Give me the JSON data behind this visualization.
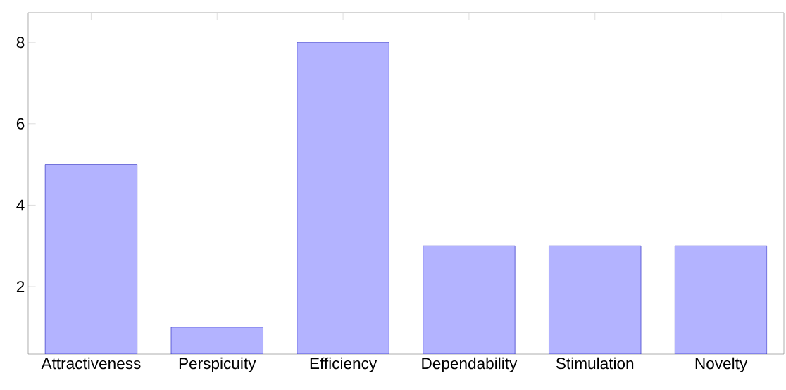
{
  "chart_data": {
    "type": "bar",
    "categories": [
      "Attractiveness",
      "Perspicuity",
      "Efficiency",
      "Dependability",
      "Stimulation",
      "Novelty"
    ],
    "values": [
      5,
      1,
      8,
      3,
      3,
      3
    ],
    "color": "#b3b3ff",
    "ylim": [
      0.34,
      8.73
    ],
    "yticks": [
      2,
      4,
      6,
      8
    ]
  }
}
